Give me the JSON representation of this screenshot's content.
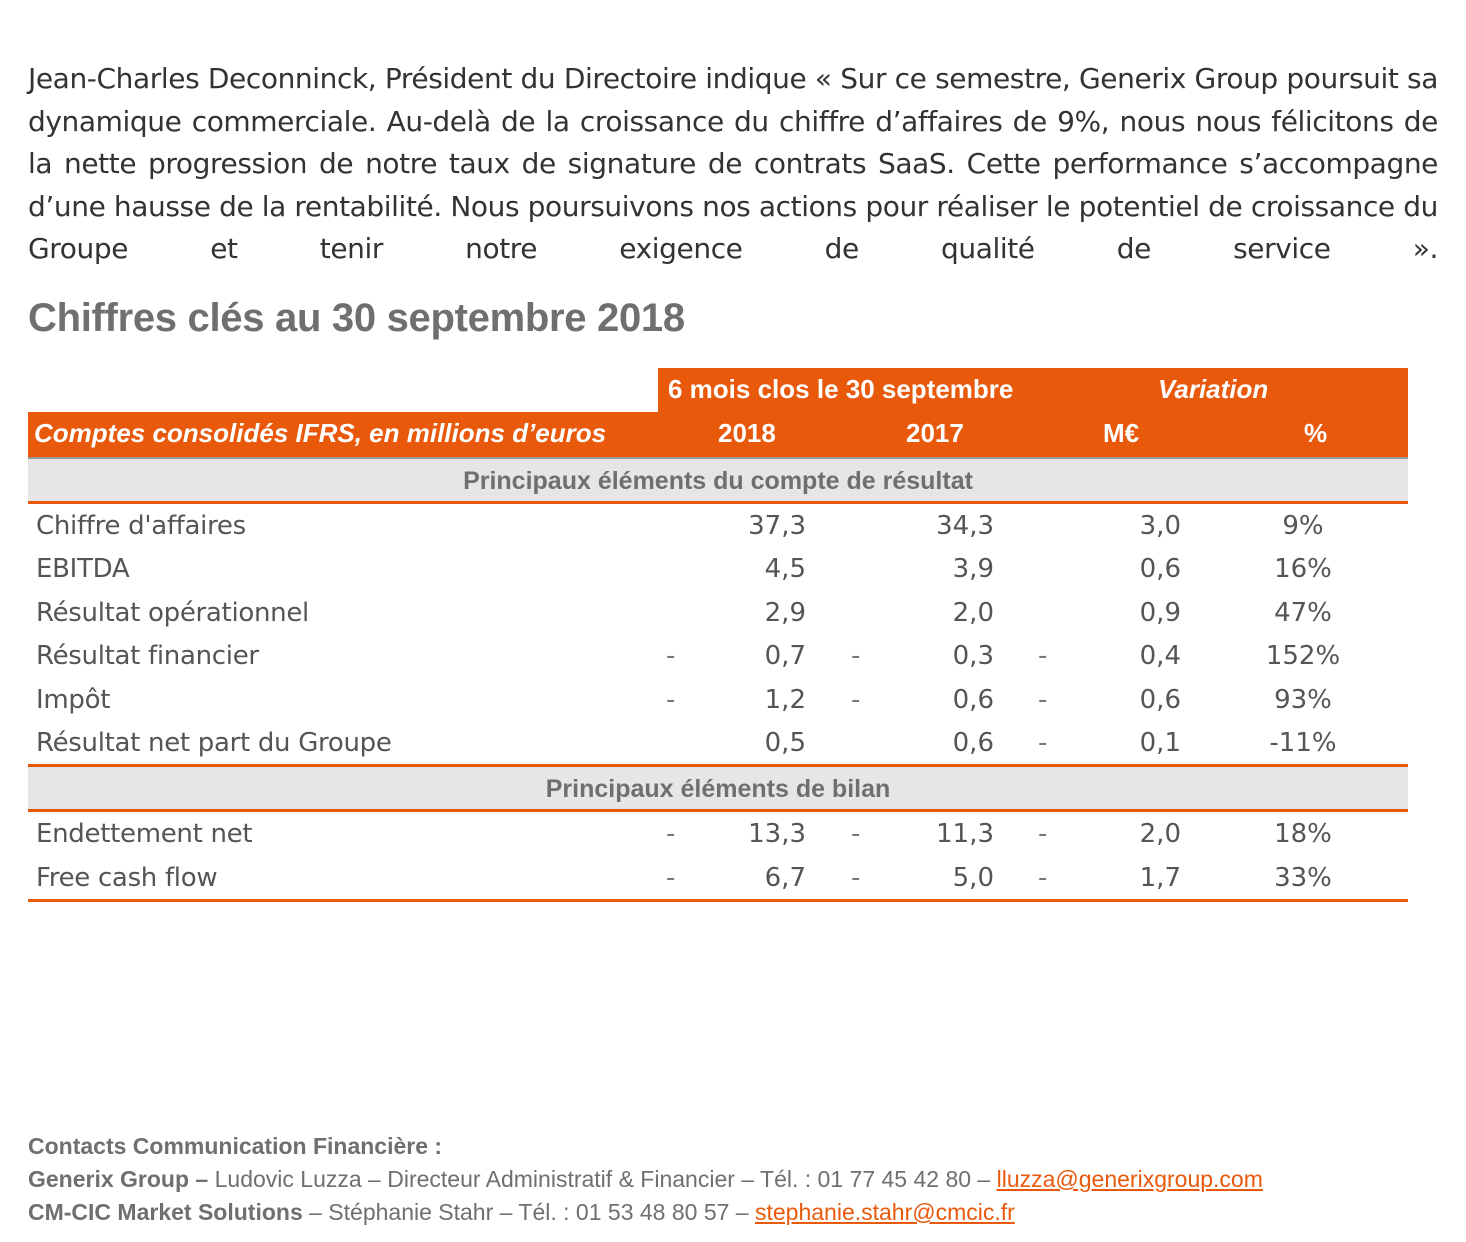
{
  "quote": "Jean-Charles Deconninck, Président du Directoire indique « Sur ce semestre, Generix Group poursuit sa dynamique commerciale. Au-delà de la croissance du chiffre d’affaires de 9%, nous nous félicitons de la nette progression de notre taux de signature de contrats SaaS. Cette performance s’accompagne d’une hausse de la rentabilité. Nous poursuivons nos actions pour réaliser le potentiel de croissance du Groupe et tenir notre exigence de qualité de service ».",
  "section_title": "Chiffres clés au 30 septembre 2018",
  "table": {
    "header_period": "6 mois clos le 30 septembre",
    "header_variation": "Variation",
    "header_label": "Comptes consolidés IFRS, en millions d’euros",
    "col_2018": "2018",
    "col_2017": "2017",
    "col_var": "M€",
    "col_pct": "%",
    "section1": "Principaux éléments du compte de résultat",
    "section2": "Principaux éléments de bilan",
    "dash": "-",
    "rows1": [
      {
        "label": "Chiffre d'affaires",
        "v2018": "37,3",
        "v2017": "34,3",
        "var": "3,0",
        "pct": "9%",
        "neg2018": false,
        "neg2017": false,
        "negvar": false
      },
      {
        "label": "EBITDA",
        "v2018": "4,5",
        "v2017": "3,9",
        "var": "0,6",
        "pct": "16%",
        "neg2018": false,
        "neg2017": false,
        "negvar": false
      },
      {
        "label": "Résultat opérationnel",
        "v2018": "2,9",
        "v2017": "2,0",
        "var": "0,9",
        "pct": "47%",
        "neg2018": false,
        "neg2017": false,
        "negvar": false
      },
      {
        "label": "Résultat financier",
        "v2018": "0,7",
        "v2017": "0,3",
        "var": "0,4",
        "pct": "152%",
        "neg2018": true,
        "neg2017": true,
        "negvar": true
      },
      {
        "label": "Impôt",
        "v2018": "1,2",
        "v2017": "0,6",
        "var": "0,6",
        "pct": "93%",
        "neg2018": true,
        "neg2017": true,
        "negvar": true
      },
      {
        "label": "Résultat net part du Groupe",
        "v2018": "0,5",
        "v2017": "0,6",
        "var": "0,1",
        "pct": "-11%",
        "neg2018": false,
        "neg2017": false,
        "negvar": true
      }
    ],
    "rows2": [
      {
        "label": "Endettement net",
        "v2018": "13,3",
        "v2017": "11,3",
        "var": "2,0",
        "pct": "18%",
        "neg2018": true,
        "neg2017": true,
        "negvar": true
      },
      {
        "label": "Free cash flow",
        "v2018": "6,7",
        "v2017": "5,0",
        "var": "1,7",
        "pct": "33%",
        "neg2018": true,
        "neg2017": true,
        "negvar": true
      }
    ]
  },
  "contacts": {
    "title": "Contacts Communication Financière :",
    "line1_org": "Generix Group –",
    "line1_text": " Ludovic Luzza – Directeur Administratif & Financier – Tél. : 01 77 45 42 80 – ",
    "line1_email": "lluzza@generixgroup.com",
    "line2_org": "CM-CIC Market Solutions",
    "line2_text": " – Stéphanie Stahr – Tél. : 01 53 48 80 57 – ",
    "line2_email": "stephanie.stahr@cmcic.fr"
  },
  "colors": {
    "accent": "#e8590c",
    "section_bg": "#e6e6e6",
    "title_gray": "#6f6f6f"
  }
}
